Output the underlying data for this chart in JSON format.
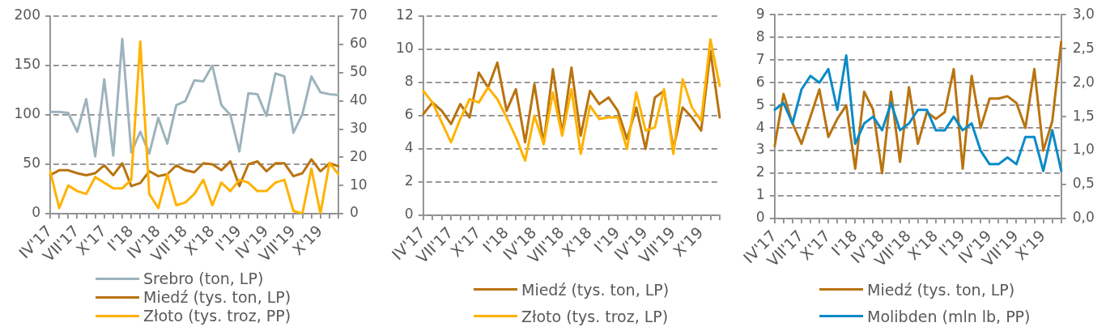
{
  "chart_data": [
    {
      "type": "line",
      "categories": [
        "IV'17",
        null,
        null,
        "VII'17",
        null,
        null,
        "X'17",
        null,
        null,
        "I'18",
        null,
        null,
        "IV'18",
        null,
        null,
        "VII'18",
        null,
        null,
        "X'18",
        null,
        null,
        "I'19",
        null,
        null,
        "IV'19",
        null,
        null,
        "VII'19",
        null,
        null,
        "X'19",
        null,
        null
      ],
      "series": [
        {
          "name": "Srebro (ton, LP)",
          "color": "#9db3bc",
          "values": [
            103,
            103,
            102,
            83,
            116,
            58,
            136,
            59,
            177,
            62,
            83,
            61,
            97,
            71,
            110,
            114,
            135,
            134,
            150,
            110,
            100,
            63,
            122,
            121,
            99,
            142,
            139,
            82,
            101,
            139,
            123,
            121,
            120
          ]
        },
        {
          "name": "Miedź (tys. ton, LP)",
          "color": "#b9730f",
          "values": [
            39,
            44,
            44,
            41,
            39,
            41,
            49,
            39,
            51,
            28,
            31,
            43,
            38,
            40,
            49,
            44,
            42,
            51,
            50,
            44,
            53,
            28,
            50,
            53,
            43,
            51,
            51,
            38,
            41,
            55,
            43,
            51,
            48
          ]
        },
        {
          "name": "Złoto (tys. troz, PP)",
          "color": "#ffb200",
          "axis": "y2",
          "values": [
            15,
            2,
            10,
            8,
            7,
            13,
            11,
            9,
            9,
            12,
            61,
            7,
            2,
            14,
            3,
            4,
            7,
            12,
            3,
            11,
            8,
            12,
            11,
            8,
            8,
            11,
            12,
            1,
            0,
            16,
            0,
            18,
            14
          ]
        }
      ],
      "ylim": [
        0,
        200
      ],
      "yticks": [
        0,
        50,
        100,
        150,
        200
      ],
      "y2lim": [
        0,
        70
      ],
      "y2ticks": [
        0,
        10,
        20,
        30,
        40,
        50,
        60,
        70
      ],
      "grid": "y",
      "legend": "bottom"
    },
    {
      "type": "line",
      "categories": [
        "IV'17",
        null,
        null,
        "VII'17",
        null,
        null,
        "X'17",
        null,
        null,
        "I'18",
        null,
        null,
        "IV'18",
        null,
        null,
        "VII'18",
        null,
        null,
        "X'18",
        null,
        null,
        "I'19",
        null,
        null,
        "IV'19",
        null,
        null,
        "VII'19",
        null,
        null,
        "X'19",
        null,
        null
      ],
      "series": [
        {
          "name": "Miedź (tys. ton, LP)",
          "color": "#b9730f",
          "values": [
            6.1,
            6.8,
            6.3,
            5.5,
            6.7,
            5.9,
            8.6,
            7.7,
            9.2,
            6.3,
            7.6,
            4.4,
            7.9,
            4.3,
            8.8,
            4.9,
            8.9,
            4.8,
            7.5,
            6.7,
            7.1,
            6.3,
            4.6,
            6.5,
            4.0,
            7.1,
            7.5,
            4.0,
            6.5,
            5.9,
            5.1,
            9.9,
            5.9
          ]
        },
        {
          "name": "Złoto (tys. troz, LP)",
          "color": "#ffb200",
          "values": [
            7.5,
            6.8,
            5.6,
            4.4,
            5.8,
            7.0,
            6.8,
            7.7,
            7.0,
            5.9,
            4.7,
            3.3,
            6.0,
            4.3,
            7.4,
            4.8,
            7.6,
            3.7,
            6.6,
            5.8,
            5.9,
            5.9,
            4.0,
            7.4,
            5.1,
            5.3,
            7.6,
            3.7,
            8.2,
            6.5,
            5.7,
            10.6,
            7.8
          ]
        }
      ],
      "ylim": [
        0,
        12
      ],
      "yticks": [
        0,
        2,
        4,
        6,
        8,
        10,
        12
      ],
      "grid": "y",
      "legend": "bottom"
    },
    {
      "type": "line",
      "categories": [
        "IV'17",
        null,
        null,
        "VII'17",
        null,
        null,
        "X'17",
        null,
        null,
        "I'18",
        null,
        null,
        "IV'18",
        null,
        null,
        "VII'18",
        null,
        null,
        "X'18",
        null,
        null,
        "I'19",
        null,
        null,
        "IV'19",
        null,
        null,
        "VII'19",
        null,
        null,
        "X'19",
        null,
        null
      ],
      "series": [
        {
          "name": "Miedź (tys. ton, LP)",
          "color": "#b9730f",
          "values": [
            3.2,
            5.5,
            4.2,
            3.3,
            4.5,
            5.7,
            3.6,
            4.4,
            5.0,
            2.2,
            5.6,
            4.8,
            2.0,
            5.6,
            2.5,
            5.8,
            3.3,
            4.7,
            4.4,
            4.7,
            6.6,
            2.2,
            6.3,
            4.0,
            5.3,
            5.3,
            5.4,
            5.1,
            4.0,
            6.6,
            3.0,
            4.3,
            7.8
          ]
        },
        {
          "name": "Molibden (mln lb, PP)",
          "color": "#0a8ac8",
          "axis": "y2",
          "values": [
            1.6,
            1.7,
            1.4,
            1.9,
            2.1,
            2.0,
            2.2,
            1.6,
            2.4,
            1.1,
            1.4,
            1.5,
            1.3,
            1.7,
            1.3,
            1.4,
            1.6,
            1.6,
            1.3,
            1.3,
            1.5,
            1.3,
            1.4,
            1.0,
            0.8,
            0.8,
            0.9,
            0.8,
            1.2,
            1.2,
            0.7,
            1.3,
            0.7
          ]
        }
      ],
      "ylim": [
        0,
        9
      ],
      "yticks": [
        0,
        1,
        2,
        3,
        4,
        5,
        6,
        7,
        8,
        9
      ],
      "y2lim": [
        0,
        3
      ],
      "y2ticks": [
        {
          "value": 0,
          "label": "0,0"
        },
        {
          "value": 0.5,
          "label": "0,5"
        },
        {
          "value": 1,
          "label": "1,0"
        },
        {
          "value": 1.5,
          "label": "1,5"
        },
        {
          "value": 2,
          "label": "2,0"
        },
        {
          "value": 2.5,
          "label": "2,5"
        },
        {
          "value": 3,
          "label": "3,0"
        }
      ],
      "grid": "y",
      "legend": "bottom"
    }
  ]
}
